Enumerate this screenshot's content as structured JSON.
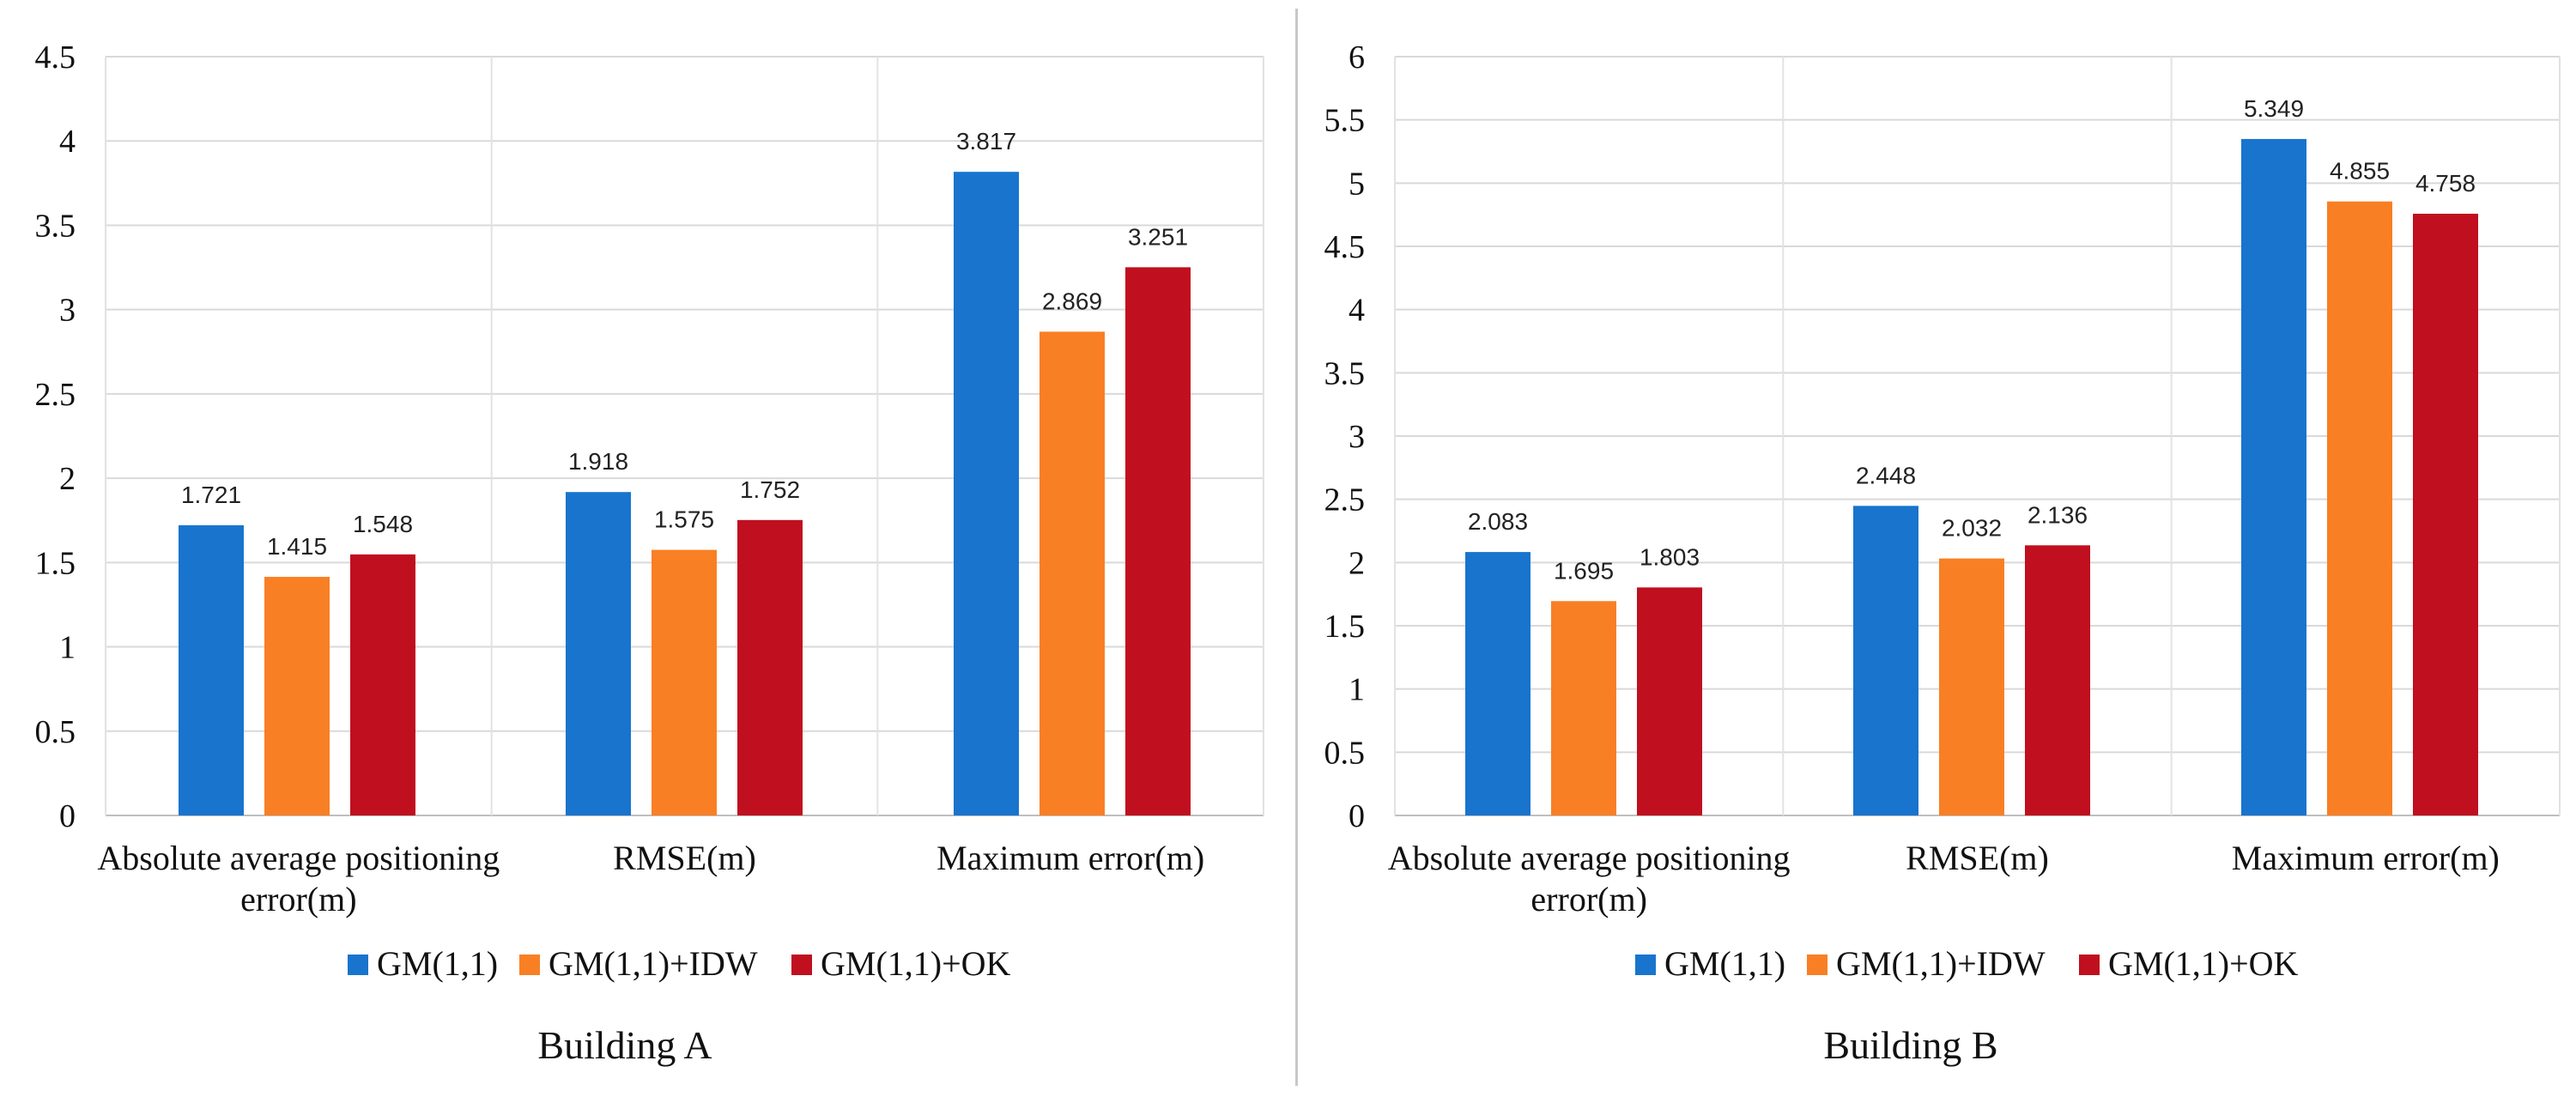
{
  "chart_data": [
    {
      "type": "bar",
      "title": "Building A",
      "categories": [
        "Absolute average positioning error(m)",
        "RMSE(m)",
        "Maximum error(m)"
      ],
      "category_lines": [
        [
          "Absolute average positioning",
          "error(m)"
        ],
        [
          "RMSE(m)"
        ],
        [
          "Maximum error(m)"
        ]
      ],
      "series": [
        {
          "name": "GM(1,1)",
          "color": "#1874CD",
          "values": [
            1.721,
            1.918,
            3.817
          ]
        },
        {
          "name": "GM(1,1)+IDW",
          "color": "#F97F25",
          "values": [
            1.415,
            1.575,
            2.869
          ]
        },
        {
          "name": "GM(1,1)+OK",
          "color": "#C00F1F",
          "values": [
            1.548,
            1.752,
            3.251
          ]
        }
      ],
      "ylim": [
        0,
        4.5
      ],
      "yticks": [
        "0",
        "0.5",
        "1",
        "1.5",
        "2",
        "2.5",
        "3",
        "3.5",
        "4",
        "4.5"
      ],
      "grid": true,
      "legend_position": "bottom",
      "xlabel": "",
      "ylabel": ""
    },
    {
      "type": "bar",
      "title": "Building B",
      "categories": [
        "Absolute average positioning error(m)",
        "RMSE(m)",
        "Maximum error(m)"
      ],
      "category_lines": [
        [
          "Absolute average positioning",
          "error(m)"
        ],
        [
          "RMSE(m)"
        ],
        [
          "Maximum error(m)"
        ]
      ],
      "series": [
        {
          "name": "GM(1,1)",
          "color": "#1874CD",
          "values": [
            2.083,
            2.448,
            5.349
          ]
        },
        {
          "name": "GM(1,1)+IDW",
          "color": "#F97F25",
          "values": [
            1.695,
            2.032,
            4.855
          ]
        },
        {
          "name": "GM(1,1)+OK",
          "color": "#C00F1F",
          "values": [
            1.803,
            2.136,
            4.758
          ]
        }
      ],
      "ylim": [
        0,
        6
      ],
      "yticks": [
        "0",
        "0.5",
        "1",
        "1.5",
        "2",
        "2.5",
        "3",
        "3.5",
        "4",
        "4.5",
        "5",
        "5.5",
        "6"
      ],
      "grid": true,
      "legend_position": "bottom",
      "xlabel": "",
      "ylabel": ""
    }
  ]
}
